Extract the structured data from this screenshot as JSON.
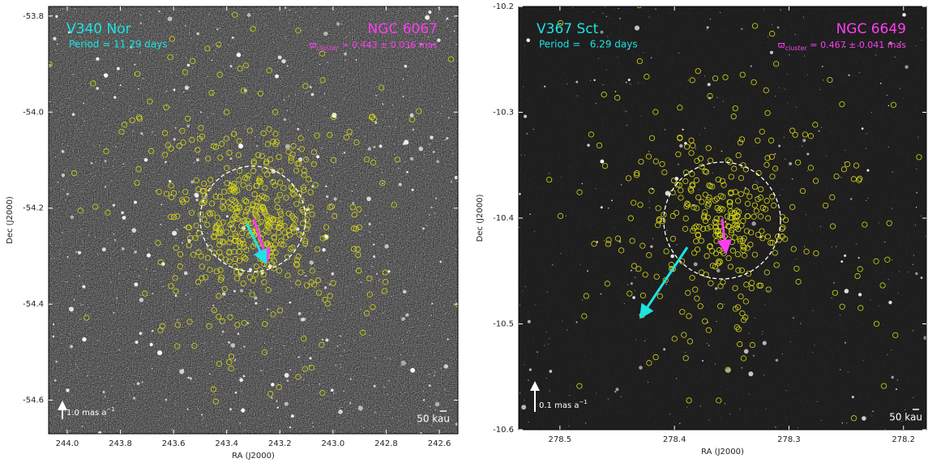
{
  "chart_data": [
    {
      "type": "image",
      "xlabel": "RA (J2000)",
      "ylabel": "Dec (J2000)",
      "xlim": [
        244.07,
        242.53
      ],
      "ylim": [
        -54.67,
        -53.78
      ],
      "xticks": [
        {
          "value": 244,
          "label": "244.0"
        },
        243.8,
        243.6,
        243.4,
        243.2,
        {
          "value": 243,
          "label": "243.0"
        },
        242.8,
        242.6
      ],
      "yticks": [
        -53.8,
        {
          "value": -54,
          "label": "-54.0"
        },
        -54.2,
        -54.4,
        -54.6
      ],
      "annotations": {
        "star": "V340 Nor",
        "period": "Period = 11.29 days",
        "cluster": "NGC 6067",
        "parallax_symbol": "ϖ",
        "parallax_subscript": "cluster",
        "parallax_value": " = 0.443 ± 0.036 mas",
        "scale_arrow_label": "1.0 mas a",
        "scale_arrow_exponent": "−1",
        "scale_bar_label": "50 kau"
      }
    },
    {
      "type": "image",
      "xlabel": "RA (J2000)",
      "ylabel": "Dec (J2000)",
      "xlim": [
        278.536,
        278.18
      ],
      "ylim": [
        -10.6,
        -10.2
      ],
      "xticks": [
        278.5,
        278.4,
        278.3,
        278.2
      ],
      "yticks": [
        -10.2,
        -10.3,
        -10.4,
        -10.5,
        -10.6
      ],
      "annotations": {
        "star": "V367 Sct",
        "period": "Period =   6.29 days",
        "cluster": "NGC 6649",
        "parallax_symbol": "ϖ",
        "parallax_subscript": "cluster",
        "parallax_value": " = 0.467 ± 0.041 mas",
        "scale_arrow_label": "0.1 mas a",
        "scale_arrow_exponent": "−1",
        "scale_bar_label": "50 kau"
      }
    }
  ]
}
